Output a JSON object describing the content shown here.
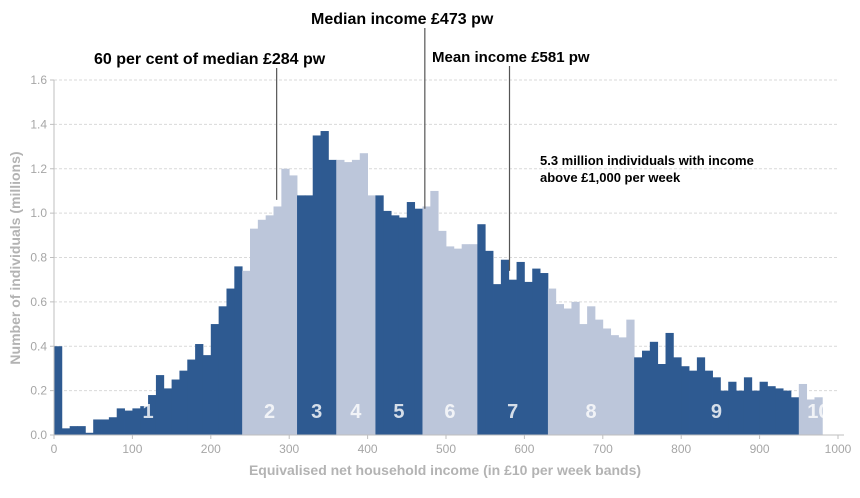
{
  "chart_data": {
    "type": "bar",
    "xlabel": "Equivalised net household income (in £10 per week bands)",
    "ylabel": "Number of individuals (millions)",
    "xlim": [
      0,
      1000
    ],
    "ylim": [
      0,
      1.6
    ],
    "x_ticks": [
      "0",
      "100",
      "200",
      "300",
      "400",
      "500",
      "600",
      "700",
      "800",
      "900",
      "1000"
    ],
    "y_ticks": [
      "0.0",
      "0.2",
      "0.4",
      "0.6",
      "0.8",
      "1.0",
      "1.2",
      "1.4",
      "1.6"
    ],
    "grid": true,
    "bin_width": 10,
    "colors": {
      "dark": "#2e5a91",
      "light": "#bcc6da",
      "axis": "#bfbfbf",
      "grid": "#d9d9d9",
      "leader": "#555555"
    },
    "values": [
      0.4,
      0.03,
      0.04,
      0.04,
      0.01,
      0.07,
      0.07,
      0.08,
      0.12,
      0.11,
      0.12,
      0.13,
      0.18,
      0.27,
      0.21,
      0.25,
      0.29,
      0.34,
      0.41,
      0.36,
      0.5,
      0.58,
      0.66,
      0.76,
      0.74,
      0.93,
      0.97,
      0.99,
      1.03,
      1.2,
      1.17,
      1.08,
      1.08,
      1.35,
      1.37,
      1.24,
      1.24,
      1.23,
      1.24,
      1.27,
      1.08,
      1.08,
      1.01,
      0.99,
      0.98,
      1.05,
      1.02,
      1.03,
      1.1,
      0.92,
      0.85,
      0.84,
      0.86,
      0.86,
      0.95,
      0.83,
      0.68,
      0.79,
      0.7,
      0.78,
      0.69,
      0.75,
      0.73,
      0.66,
      0.59,
      0.57,
      0.6,
      0.5,
      0.58,
      0.52,
      0.48,
      0.45,
      0.44,
      0.52,
      0.35,
      0.38,
      0.42,
      0.32,
      0.46,
      0.35,
      0.31,
      0.29,
      0.35,
      0.29,
      0.26,
      0.2,
      0.24,
      0.2,
      0.26,
      0.2,
      0.24,
      0.22,
      0.21,
      0.2,
      0.17,
      0.23,
      0.16,
      0.17
    ],
    "deciles": [
      {
        "label": "1",
        "x0": 0,
        "x1": 240,
        "shade": "dark"
      },
      {
        "label": "2",
        "x0": 240,
        "x1": 310,
        "shade": "light"
      },
      {
        "label": "3",
        "x0": 310,
        "x1": 360,
        "shade": "dark"
      },
      {
        "label": "4",
        "x0": 360,
        "x1": 410,
        "shade": "light"
      },
      {
        "label": "5",
        "x0": 410,
        "x1": 470,
        "shade": "dark"
      },
      {
        "label": "6",
        "x0": 470,
        "x1": 540,
        "shade": "light"
      },
      {
        "label": "7",
        "x0": 540,
        "x1": 630,
        "shade": "dark"
      },
      {
        "label": "8",
        "x0": 630,
        "x1": 740,
        "shade": "light"
      },
      {
        "label": "9",
        "x0": 740,
        "x1": 950,
        "shade": "dark"
      },
      {
        "label": "10",
        "x0": 950,
        "x1": 1000,
        "shade": "light"
      }
    ],
    "annotations": [
      {
        "text": "60 per cent of median £284 pw",
        "x": 284,
        "y_end": 1.06
      },
      {
        "text": "Median income £473 pw",
        "x": 473,
        "y_end": 1.02
      },
      {
        "text": "Mean income £581 pw",
        "x": 581,
        "y_end": 0.74
      }
    ],
    "note_lines": [
      "5.3 million individuals with income",
      "above £1,000 per week"
    ]
  }
}
